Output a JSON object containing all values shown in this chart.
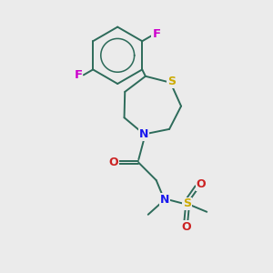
{
  "background_color": "#ebebeb",
  "figure_size": [
    3.0,
    3.0
  ],
  "dpi": 100,
  "bond_color": "#2d6b5a",
  "S_color": "#ccaa00",
  "N_color": "#1a1aee",
  "O_color": "#cc2222",
  "F_color": "#cc00cc",
  "line_width": 1.4,
  "font_size": 9.0,
  "xlim": [
    0,
    10
  ],
  "ylim": [
    0,
    10
  ]
}
